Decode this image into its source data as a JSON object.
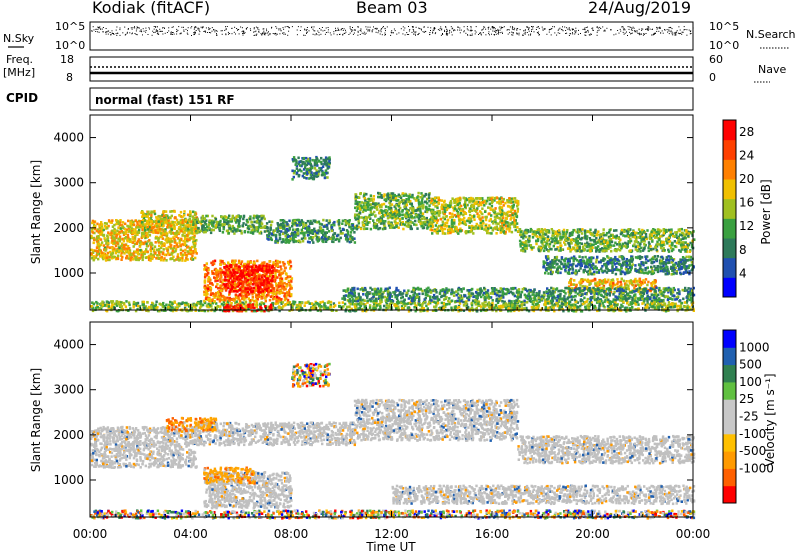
{
  "header": {
    "station": "Kodiak (fitACF)",
    "beam": "Beam 03",
    "date": "24/Aug/2019"
  },
  "strip_labels": {
    "nsky": "N.Sky",
    "nsearch": "N.Search",
    "freq": "Freq.",
    "freq_unit": "[MHz]",
    "nave": "Nave",
    "cpid": "CPID",
    "cpid_value": "normal (fast) 151 RF",
    "noise_top_left": "10^5",
    "noise_bottom_left": "10^0",
    "noise_top_right": "10^5",
    "noise_bottom_right": "10^0",
    "freq_top": "18",
    "freq_bottom": "8",
    "nave_top": "60",
    "nave_bottom": "0"
  },
  "colors": {
    "power_scale": [
      "#0000ff",
      "#2050b0",
      "#2e7a5a",
      "#3aa040",
      "#a0c020",
      "#f0c000",
      "#ff8000",
      "#ff4000",
      "#ff0000"
    ],
    "velocity_scale": [
      "#ff0000",
      "#ff6000",
      "#ff9a00",
      "#ffc000",
      "#c8c8c8",
      "#c8c8c8",
      "#60c040",
      "#308050",
      "#2060b0",
      "#0000ff"
    ],
    "ground_scatter": "#c0c0c0"
  },
  "chart_data": [
    {
      "type": "heatmap",
      "panel": "power",
      "xlabel": "Time UT",
      "ylabel": "Slant Range [km]",
      "x_ticks": [
        "00:00",
        "04:00",
        "08:00",
        "12:00",
        "16:00",
        "20:00",
        "00:00"
      ],
      "x_range_hours": [
        0,
        24
      ],
      "ylim": [
        180,
        4500
      ],
      "y_ticks": [
        1000,
        2000,
        3000,
        4000
      ],
      "colorbar": {
        "label": "Power [dB]",
        "ticks": [
          4,
          8,
          12,
          16,
          20,
          24,
          28
        ],
        "range": [
          0,
          30
        ]
      },
      "regions": [
        {
          "t": [
            0.0,
            24.0
          ],
          "r": [
            180,
            400
          ],
          "level": 14
        },
        {
          "t": [
            5.3,
            7.2
          ],
          "r": [
            180,
            330
          ],
          "level": 29
        },
        {
          "t": [
            0.0,
            4.2
          ],
          "r": [
            1300,
            2200
          ],
          "level": 18
        },
        {
          "t": [
            2.0,
            4.2
          ],
          "r": [
            1900,
            2400
          ],
          "level": 17
        },
        {
          "t": [
            4.2,
            7.0
          ],
          "r": [
            1900,
            2300
          ],
          "level": 12
        },
        {
          "t": [
            7.0,
            10.5
          ],
          "r": [
            1700,
            2200
          ],
          "level": 10
        },
        {
          "t": [
            10.5,
            13.5
          ],
          "r": [
            2000,
            2800
          ],
          "level": 13
        },
        {
          "t": [
            13.5,
            17.0
          ],
          "r": [
            1900,
            2700
          ],
          "level": 16
        },
        {
          "t": [
            17.0,
            24.0
          ],
          "r": [
            1500,
            2000
          ],
          "level": 13
        },
        {
          "t": [
            18.0,
            24.0
          ],
          "r": [
            1000,
            1400
          ],
          "level": 9
        },
        {
          "t": [
            19.0,
            22.5
          ],
          "r": [
            600,
            900
          ],
          "level": 19
        },
        {
          "t": [
            4.5,
            8.0
          ],
          "r": [
            400,
            1300
          ],
          "level": 22
        },
        {
          "t": [
            5.3,
            7.3
          ],
          "r": [
            600,
            1200
          ],
          "level": 28
        },
        {
          "t": [
            8.0,
            9.5
          ],
          "r": [
            3100,
            3600
          ],
          "level": 9
        },
        {
          "t": [
            10.0,
            24.0
          ],
          "r": [
            400,
            700
          ],
          "level": 10
        }
      ]
    },
    {
      "type": "heatmap",
      "panel": "velocity",
      "xlabel": "Time UT",
      "ylabel": "Slant Range [km]",
      "x_ticks": [
        "00:00",
        "04:00",
        "08:00",
        "12:00",
        "16:00",
        "20:00",
        "00:00"
      ],
      "x_range_hours": [
        0,
        24
      ],
      "ylim": [
        180,
        4500
      ],
      "y_ticks": [
        1000,
        2000,
        3000,
        4000
      ],
      "colorbar": {
        "label": "Velocity [m s⁻¹]",
        "ticks": [
          "1000",
          "500",
          "100",
          "25",
          "-25",
          "-100",
          "-500",
          "-1000"
        ]
      },
      "regions": [
        {
          "t": [
            0.0,
            4.2
          ],
          "r": [
            1300,
            2200
          ],
          "kind": "ground"
        },
        {
          "t": [
            4.2,
            10.5
          ],
          "r": [
            1800,
            2300
          ],
          "kind": "ground"
        },
        {
          "t": [
            10.5,
            17.0
          ],
          "r": [
            1900,
            2800
          ],
          "kind": "ground"
        },
        {
          "t": [
            17.0,
            24.0
          ],
          "r": [
            1400,
            2000
          ],
          "kind": "ground"
        },
        {
          "t": [
            4.5,
            8.0
          ],
          "r": [
            400,
            1200
          ],
          "kind": "ground"
        },
        {
          "t": [
            12.0,
            24.0
          ],
          "r": [
            500,
            900
          ],
          "kind": "ground"
        },
        {
          "t": [
            4.5,
            6.5
          ],
          "r": [
            950,
            1300
          ],
          "kind": "negative"
        },
        {
          "t": [
            3.0,
            5.0
          ],
          "r": [
            2100,
            2400
          ],
          "kind": "negative"
        },
        {
          "t": [
            8.0,
            9.5
          ],
          "r": [
            3100,
            3600
          ],
          "kind": "mixed"
        },
        {
          "t": [
            0.0,
            24.0
          ],
          "r": [
            180,
            350
          ],
          "kind": "mixed"
        }
      ]
    }
  ]
}
